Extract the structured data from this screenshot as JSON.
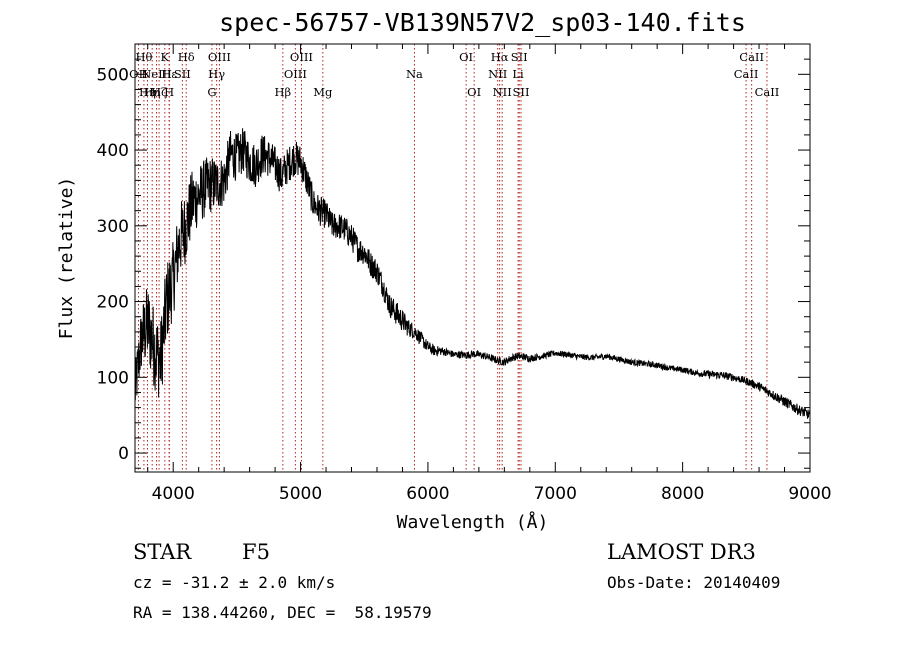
{
  "chart_data": {
    "type": "line",
    "title": "spec-56757-VB139N57V2_sp03-140.fits",
    "xlabel": "Wavelength (Å)",
    "ylabel": "Flux (relative)",
    "xlim": [
      3700,
      9000
    ],
    "ylim": [
      -25,
      540
    ],
    "xticks": [
      4000,
      5000,
      6000,
      7000,
      8000,
      9000
    ],
    "yticks": [
      0,
      100,
      200,
      300,
      400,
      500
    ],
    "spectrum": {
      "x": [
        3700,
        3750,
        3800,
        3850,
        3900,
        3950,
        4000,
        4050,
        4100,
        4150,
        4200,
        4250,
        4300,
        4350,
        4400,
        4450,
        4500,
        4550,
        4600,
        4650,
        4700,
        4750,
        4800,
        4850,
        4900,
        4950,
        5000,
        5050,
        5100,
        5150,
        5200,
        5250,
        5300,
        5350,
        5400,
        5450,
        5500,
        5550,
        5600,
        5650,
        5700,
        5750,
        5800,
        5850,
        5900,
        5950,
        6000,
        6050,
        6100,
        6150,
        6200,
        6250,
        6300,
        6350,
        6400,
        6450,
        6500,
        6550,
        6600,
        6650,
        6700,
        6750,
        6800,
        6900,
        7000,
        7100,
        7200,
        7300,
        7400,
        7500,
        7600,
        7700,
        7800,
        7900,
        8000,
        8100,
        8200,
        8300,
        8400,
        8500,
        8600,
        8700,
        8800,
        8900,
        9000
      ],
      "y": [
        80,
        150,
        170,
        140,
        120,
        200,
        230,
        280,
        300,
        330,
        340,
        350,
        355,
        355,
        360,
        395,
        390,
        400,
        385,
        380,
        395,
        390,
        380,
        365,
        380,
        390,
        385,
        360,
        330,
        320,
        315,
        300,
        300,
        295,
        285,
        270,
        265,
        250,
        240,
        220,
        195,
        185,
        175,
        165,
        160,
        150,
        140,
        135,
        135,
        133,
        130,
        130,
        129,
        131,
        130,
        128,
        125,
        122,
        120,
        125,
        128,
        127,
        125,
        128,
        132,
        130,
        127,
        126,
        128,
        124,
        120,
        118,
        116,
        112,
        110,
        106,
        104,
        103,
        100,
        95,
        88,
        78,
        68,
        58,
        50
      ],
      "noise": [
        35,
        45,
        55,
        55,
        55,
        55,
        50,
        50,
        48,
        45,
        40,
        40,
        38,
        35,
        35,
        32,
        32,
        30,
        30,
        30,
        28,
        26,
        25,
        25,
        24,
        24,
        23,
        22,
        21,
        20,
        19,
        18,
        18,
        18,
        18,
        18,
        17,
        17,
        16,
        16,
        16,
        16,
        15,
        12,
        10,
        9,
        8,
        7,
        6,
        5,
        5,
        5,
        5,
        5,
        5,
        5,
        5,
        5,
        5,
        5,
        5,
        5,
        5,
        4,
        4,
        4,
        4,
        4,
        4,
        4,
        4,
        4,
        4,
        4,
        4,
        4,
        5,
        5,
        5,
        5,
        6,
        6,
        7,
        7,
        7
      ]
    },
    "lines": [
      {
        "wave": 3727,
        "label": "OII",
        "row": 2
      },
      {
        "wave": 3770,
        "label": "Hθ",
        "row": 1
      },
      {
        "wave": 3798,
        "label": "Hη",
        "row": 3
      },
      {
        "wave": 3835,
        "label": "Hη",
        "row": 3
      },
      {
        "wave": 3869,
        "label": "NeIII",
        "row": 2
      },
      {
        "wave": 3889,
        "label": "Hζ",
        "row": 3
      },
      {
        "wave": 3934,
        "label": "K",
        "row": 1
      },
      {
        "wave": 3968,
        "label": "H",
        "row": 3
      },
      {
        "wave": 3970,
        "label": "Hε",
        "row": 2
      },
      {
        "wave": 4072,
        "label": "SII",
        "row": 2
      },
      {
        "wave": 4102,
        "label": "Hδ",
        "row": 1
      },
      {
        "wave": 4304,
        "label": "G",
        "row": 3
      },
      {
        "wave": 4341,
        "label": "Hγ",
        "row": 2
      },
      {
        "wave": 4363,
        "label": "OIII",
        "row": 1
      },
      {
        "wave": 4861,
        "label": "Hβ",
        "row": 3
      },
      {
        "wave": 4959,
        "label": "OIII",
        "row": 2
      },
      {
        "wave": 5007,
        "label": "OIII",
        "row": 1
      },
      {
        "wave": 5175,
        "label": "Mg",
        "row": 3
      },
      {
        "wave": 5894,
        "label": "Na",
        "row": 2
      },
      {
        "wave": 6300,
        "label": "OI",
        "row": 1
      },
      {
        "wave": 6363,
        "label": "OI",
        "row": 3
      },
      {
        "wave": 6548,
        "label": "NII",
        "row": 2
      },
      {
        "wave": 6563,
        "label": "Hα",
        "row": 1
      },
      {
        "wave": 6583,
        "label": "NII",
        "row": 3
      },
      {
        "wave": 6708,
        "label": "Li",
        "row": 2
      },
      {
        "wave": 6717,
        "label": "SII",
        "row": 1
      },
      {
        "wave": 6731,
        "label": "SII",
        "row": 3
      },
      {
        "wave": 8498,
        "label": "CaII",
        "row": 2
      },
      {
        "wave": 8542,
        "label": "CaII",
        "row": 1
      },
      {
        "wave": 8662,
        "label": "CaII",
        "row": 3
      }
    ],
    "line_color": "#b22222"
  },
  "info": {
    "object_class": "STAR",
    "subclass": "F5",
    "survey": "LAMOST DR3",
    "redshift": "cz = -31.2 ± 2.0 km/s",
    "obs_date": "Obs-Date: 20140409",
    "coords": "RA = 138.44260, DEC =  58.19579"
  }
}
